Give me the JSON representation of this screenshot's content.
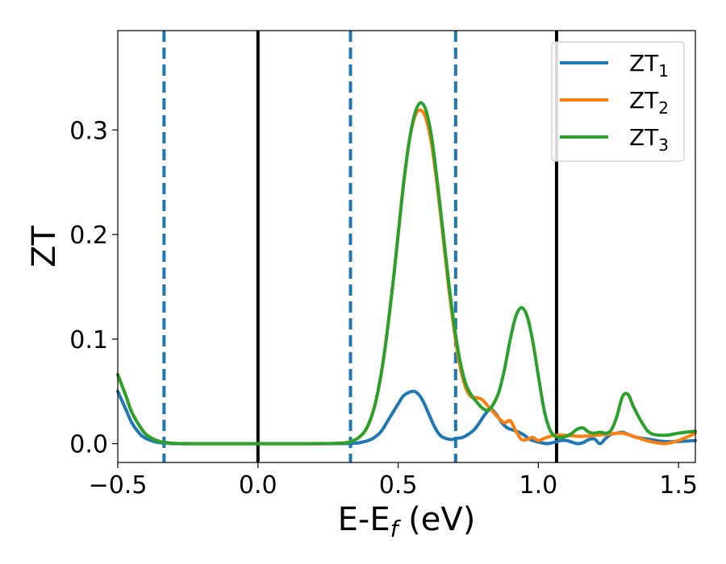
{
  "chart_data": {
    "type": "line",
    "xlabel": "E-E",
    "xlabel_sub": "f",
    "xlabel_suffix": " (eV)",
    "ylabel": "ZT",
    "xlim": [
      -0.5,
      1.56
    ],
    "ylim": [
      -0.018,
      0.395
    ],
    "x_ticks": [
      -0.5,
      0.0,
      0.5,
      1.0,
      1.5
    ],
    "x_tick_labels": [
      "−0.5",
      "0.0",
      "0.5",
      "1.0",
      "1.5"
    ],
    "y_ticks": [
      0.0,
      0.1,
      0.2,
      0.3
    ],
    "y_tick_labels": [
      "0.0",
      "0.1",
      "0.2",
      "0.3"
    ],
    "grid": false,
    "legend_position": "top-right",
    "vlines_solid": [
      0.0,
      1.065
    ],
    "vlines_dashed": [
      -0.335,
      0.33,
      0.705
    ],
    "vline_solid_color": "#000000",
    "vline_dashed_color": "#1f77b4",
    "series": [
      {
        "name": "ZT",
        "name_sub": "1",
        "color": "#1f77b4",
        "x": [
          -0.5,
          -0.47,
          -0.45,
          -0.42,
          -0.4,
          -0.37,
          -0.35,
          -0.32,
          -0.3,
          -0.25,
          -0.2,
          -0.1,
          0.0,
          0.1,
          0.2,
          0.3,
          0.35,
          0.38,
          0.41,
          0.44,
          0.47,
          0.5,
          0.52,
          0.55,
          0.57,
          0.59,
          0.61,
          0.63,
          0.65,
          0.67,
          0.69,
          0.71,
          0.73,
          0.75,
          0.77,
          0.79,
          0.81,
          0.83,
          0.85,
          0.87,
          0.89,
          0.91,
          0.93,
          0.95,
          0.97,
          1.0,
          1.03,
          1.06,
          1.08,
          1.1,
          1.12,
          1.14,
          1.16,
          1.18,
          1.2,
          1.22,
          1.24,
          1.26,
          1.28,
          1.3,
          1.32,
          1.35,
          1.4,
          1.45,
          1.5,
          1.56
        ],
        "y": [
          0.05,
          0.032,
          0.02,
          0.009,
          0.005,
          0.002,
          0.001,
          0.0004,
          0.0,
          0.0,
          0.0,
          0.0,
          0.0,
          0.0,
          0.0,
          0.0,
          0.0005,
          0.002,
          0.005,
          0.012,
          0.025,
          0.038,
          0.046,
          0.05,
          0.048,
          0.04,
          0.028,
          0.016,
          0.008,
          0.005,
          0.004,
          0.005,
          0.006,
          0.009,
          0.013,
          0.02,
          0.028,
          0.033,
          0.028,
          0.02,
          0.015,
          0.013,
          0.011,
          0.008,
          0.004,
          0.0015,
          0.0,
          0.0015,
          0.003,
          0.003,
          0.0015,
          0.0,
          0.001,
          0.004,
          0.0045,
          0.0,
          0.005,
          0.009,
          0.01,
          0.011,
          0.009,
          0.006,
          0.004,
          0.002,
          0.002,
          0.003
        ]
      },
      {
        "name": "ZT",
        "name_sub": "2",
        "color": "#ff7f0e",
        "x": [
          -0.5,
          -0.47,
          -0.45,
          -0.42,
          -0.4,
          -0.37,
          -0.35,
          -0.32,
          -0.3,
          -0.25,
          -0.2,
          -0.1,
          0.0,
          0.1,
          0.2,
          0.3,
          0.33,
          0.36,
          0.39,
          0.42,
          0.45,
          0.48,
          0.5,
          0.52,
          0.54,
          0.56,
          0.58,
          0.6,
          0.62,
          0.64,
          0.66,
          0.68,
          0.7,
          0.72,
          0.74,
          0.76,
          0.78,
          0.8,
          0.82,
          0.84,
          0.86,
          0.88,
          0.9,
          0.92,
          0.94,
          0.96,
          0.98,
          1.0,
          1.03,
          1.06,
          1.1,
          1.15,
          1.2,
          1.25,
          1.3,
          1.35,
          1.4,
          1.45,
          1.5,
          1.56
        ],
        "y": [
          0.066,
          0.045,
          0.03,
          0.016,
          0.009,
          0.004,
          0.002,
          0.0008,
          0.0003,
          0.0,
          0.0,
          0.0,
          0.0,
          0.0,
          0.0,
          0.0005,
          0.002,
          0.006,
          0.016,
          0.04,
          0.085,
          0.15,
          0.2,
          0.25,
          0.29,
          0.313,
          0.319,
          0.31,
          0.285,
          0.245,
          0.198,
          0.15,
          0.108,
          0.075,
          0.054,
          0.045,
          0.044,
          0.042,
          0.036,
          0.03,
          0.024,
          0.02,
          0.022,
          0.012,
          0.004,
          0.004,
          0.006,
          0.003,
          0.006,
          0.008,
          0.008,
          0.007,
          0.008,
          0.009,
          0.01,
          0.006,
          0.002,
          0.0,
          0.003,
          0.01
        ]
      },
      {
        "name": "ZT",
        "name_sub": "3",
        "color": "#2ca02c",
        "x": [
          -0.5,
          -0.47,
          -0.45,
          -0.42,
          -0.4,
          -0.37,
          -0.35,
          -0.32,
          -0.3,
          -0.25,
          -0.2,
          -0.1,
          0.0,
          0.1,
          0.2,
          0.3,
          0.33,
          0.36,
          0.39,
          0.42,
          0.45,
          0.48,
          0.5,
          0.52,
          0.54,
          0.56,
          0.58,
          0.6,
          0.62,
          0.64,
          0.66,
          0.68,
          0.7,
          0.72,
          0.74,
          0.76,
          0.78,
          0.8,
          0.82,
          0.84,
          0.86,
          0.88,
          0.9,
          0.92,
          0.94,
          0.96,
          0.98,
          1.0,
          1.02,
          1.04,
          1.06,
          1.08,
          1.1,
          1.12,
          1.14,
          1.16,
          1.18,
          1.2,
          1.22,
          1.24,
          1.26,
          1.28,
          1.3,
          1.32,
          1.34,
          1.37,
          1.4,
          1.45,
          1.5,
          1.56
        ],
        "y": [
          0.066,
          0.045,
          0.03,
          0.016,
          0.009,
          0.004,
          0.002,
          0.0008,
          0.0003,
          0.0,
          0.0,
          0.0,
          0.0,
          0.0,
          0.0,
          0.0005,
          0.002,
          0.006,
          0.016,
          0.04,
          0.085,
          0.15,
          0.2,
          0.25,
          0.29,
          0.316,
          0.326,
          0.318,
          0.292,
          0.25,
          0.203,
          0.155,
          0.113,
          0.08,
          0.058,
          0.047,
          0.04,
          0.034,
          0.032,
          0.038,
          0.05,
          0.072,
          0.1,
          0.122,
          0.13,
          0.122,
          0.098,
          0.065,
          0.033,
          0.014,
          0.007,
          0.006,
          0.007,
          0.01,
          0.014,
          0.015,
          0.011,
          0.01,
          0.011,
          0.01,
          0.013,
          0.026,
          0.045,
          0.047,
          0.035,
          0.02,
          0.01,
          0.008,
          0.01,
          0.012
        ]
      }
    ]
  }
}
